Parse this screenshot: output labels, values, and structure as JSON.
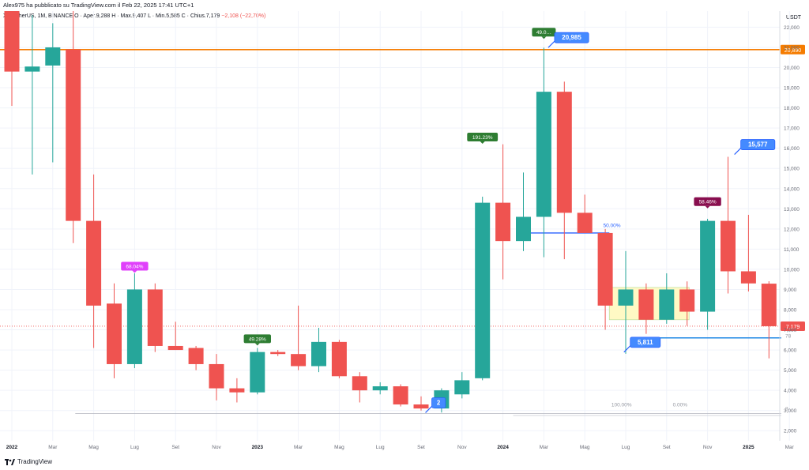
{
  "header": {
    "published": "Alex975 ha pubblicato su TradingView.com il Feb 22, 2025 17:41 UTC+1"
  },
  "legend": {
    "symbol": "X / TetherUS, 1M, BINANCE",
    "ohlc": "O · Aper.9,288  H · Max.9,407  L · Min.5,585  C · Chius.7,179",
    "change": "−2,108 (−22,70%)"
  },
  "currency": "USDT",
  "colors": {
    "up": "#26a69a",
    "down": "#ef5350",
    "level": "#f57c00",
    "fib": "#2962ff",
    "grid": "#f0f3fa"
  },
  "chart_data": {
    "type": "candlestick",
    "ylabel": "USDT",
    "ylim": [
      1500,
      22800
    ],
    "y_ticks": [
      2000,
      3000,
      4000,
      5000,
      6000,
      7000,
      8000,
      9000,
      10000,
      11000,
      12000,
      13000,
      14000,
      15000,
      16000,
      17000,
      18000,
      19000,
      20000,
      21000,
      22000
    ],
    "y_tick_labels": [
      "2,000",
      "3,000",
      "4,000",
      "5,000",
      "6,000",
      "7,000",
      "8,000",
      "9,000",
      "10,000",
      "11,000",
      "12,000",
      "13,000",
      "14,000",
      "15,000",
      "16,000",
      "17,000",
      "18,000",
      "19,000",
      "20,000",
      "21,000",
      "22,000"
    ],
    "x_tick_labels": [
      {
        "i": 0,
        "label": "2022"
      },
      {
        "i": 2,
        "label": "Mar"
      },
      {
        "i": 4,
        "label": "Mag"
      },
      {
        "i": 6,
        "label": "Lug"
      },
      {
        "i": 8,
        "label": "Set"
      },
      {
        "i": 10,
        "label": "Nov"
      },
      {
        "i": 12,
        "label": "2023"
      },
      {
        "i": 14,
        "label": "Mar"
      },
      {
        "i": 16,
        "label": "Mag"
      },
      {
        "i": 18,
        "label": "Lug"
      },
      {
        "i": 20,
        "label": "Set"
      },
      {
        "i": 22,
        "label": "Nov"
      },
      {
        "i": 24,
        "label": "2024"
      },
      {
        "i": 26,
        "label": "Mar"
      },
      {
        "i": 28,
        "label": "Mag"
      },
      {
        "i": 30,
        "label": "Lug"
      },
      {
        "i": 32,
        "label": "Set"
      },
      {
        "i": 34,
        "label": "Nov"
      },
      {
        "i": 36,
        "label": "2025"
      },
      {
        "i": 38,
        "label": "Mar"
      }
    ],
    "candles": [
      {
        "o": 22800,
        "h": 22800,
        "l": 18100,
        "c": 19800
      },
      {
        "o": 19800,
        "h": 22600,
        "l": 14700,
        "c": 20050
      },
      {
        "o": 20100,
        "h": 22200,
        "l": 15300,
        "c": 21000
      },
      {
        "o": 20900,
        "h": 22800,
        "l": 11300,
        "c": 12400
      },
      {
        "o": 12400,
        "h": 14700,
        "l": 6100,
        "c": 8200
      },
      {
        "o": 8300,
        "h": 9300,
        "l": 4600,
        "c": 5300
      },
      {
        "o": 5300,
        "h": 9800,
        "l": 5100,
        "c": 9000
      },
      {
        "o": 9000,
        "h": 9300,
        "l": 5900,
        "c": 6200
      },
      {
        "o": 6200,
        "h": 7400,
        "l": 6000,
        "c": 6000
      },
      {
        "o": 6100,
        "h": 6200,
        "l": 5000,
        "c": 5300
      },
      {
        "o": 5300,
        "h": 5800,
        "l": 3500,
        "c": 4100
      },
      {
        "o": 4100,
        "h": 4600,
        "l": 3400,
        "c": 3900
      },
      {
        "o": 3900,
        "h": 6100,
        "l": 3800,
        "c": 5900
      },
      {
        "o": 5900,
        "h": 6000,
        "l": 5700,
        "c": 5800
      },
      {
        "o": 5800,
        "h": 8200,
        "l": 5000,
        "c": 5200
      },
      {
        "o": 5200,
        "h": 7100,
        "l": 4900,
        "c": 6400
      },
      {
        "o": 6400,
        "h": 6500,
        "l": 4600,
        "c": 4700
      },
      {
        "o": 4700,
        "h": 4900,
        "l": 3400,
        "c": 4000
      },
      {
        "o": 4000,
        "h": 4400,
        "l": 3800,
        "c": 4200
      },
      {
        "o": 4200,
        "h": 4300,
        "l": 3200,
        "c": 3300
      },
      {
        "o": 3300,
        "h": 3700,
        "l": 3000,
        "c": 3100
      },
      {
        "o": 3100,
        "h": 4100,
        "l": 2900,
        "c": 4000
      },
      {
        "o": 3800,
        "h": 4900,
        "l": 3600,
        "c": 4500
      },
      {
        "o": 4600,
        "h": 13600,
        "l": 4500,
        "c": 13300
      },
      {
        "o": 13300,
        "h": 16200,
        "l": 9500,
        "c": 11400
      },
      {
        "o": 11400,
        "h": 14800,
        "l": 10900,
        "c": 12600
      },
      {
        "o": 12600,
        "h": 20985,
        "l": 10600,
        "c": 18800
      },
      {
        "o": 18800,
        "h": 19300,
        "l": 10500,
        "c": 12800
      },
      {
        "o": 12800,
        "h": 13700,
        "l": 11800,
        "c": 11800
      },
      {
        "o": 11800,
        "h": 12000,
        "l": 7000,
        "c": 8200
      },
      {
        "o": 8200,
        "h": 10900,
        "l": 5811,
        "c": 9000
      },
      {
        "o": 9000,
        "h": 9300,
        "l": 6800,
        "c": 7500
      },
      {
        "o": 7500,
        "h": 9800,
        "l": 7300,
        "c": 9000
      },
      {
        "o": 9000,
        "h": 9400,
        "l": 7200,
        "c": 7900
      },
      {
        "o": 7900,
        "h": 12500,
        "l": 7000,
        "c": 12400
      },
      {
        "o": 12400,
        "h": 15577,
        "l": 8800,
        "c": 9900
      },
      {
        "o": 9900,
        "h": 12700,
        "l": 8900,
        "c": 9300
      },
      {
        "o": 9288,
        "h": 9407,
        "l": 5585,
        "c": 7179
      }
    ],
    "price_levels": [
      {
        "value": 20890,
        "label": "20,890",
        "color": "#f57c00"
      },
      {
        "value": 7179,
        "label": "7,179",
        "color": "#ef5350"
      }
    ],
    "annotations": [
      {
        "label": "68.04%",
        "i": 6,
        "value": 9900,
        "color": "#e040fb"
      },
      {
        "label": "49.28%",
        "i": 12,
        "value": 6300,
        "color": "#2e7d32"
      },
      {
        "label": "191.23%",
        "i": 23,
        "value": 16300,
        "color": "#2e7d32"
      },
      {
        "label": "49.0…",
        "i": 26,
        "value": 21500,
        "color": "#2e7d32"
      },
      {
        "label": "58.46%",
        "i": 34,
        "value": 13100,
        "color": "#880e4f"
      }
    ],
    "price_callouts": [
      {
        "label": "20,985",
        "i": 26.6,
        "value": 21500
      },
      {
        "label": "15,577",
        "i": 35.7,
        "value": 16200
      },
      {
        "label": "5,811",
        "i": 30.3,
        "value": 6400
      },
      {
        "label": "2",
        "i": 20.6,
        "value": 3400
      }
    ],
    "fib_labels": [
      {
        "label": "50.00%",
        "i": 28.9,
        "value": 12100
      },
      {
        "label": "100.00%",
        "i": 29.3,
        "value": 3200
      },
      {
        "label": "0.00%",
        "i": 32.3,
        "value": 3200
      },
      {
        "label": "78",
        "i": 37.8,
        "value": 6600
      },
      {
        "label": "8",
        "i": 37.8,
        "value": 3000
      }
    ]
  },
  "branding": {
    "logo_text": "TradingView"
  }
}
